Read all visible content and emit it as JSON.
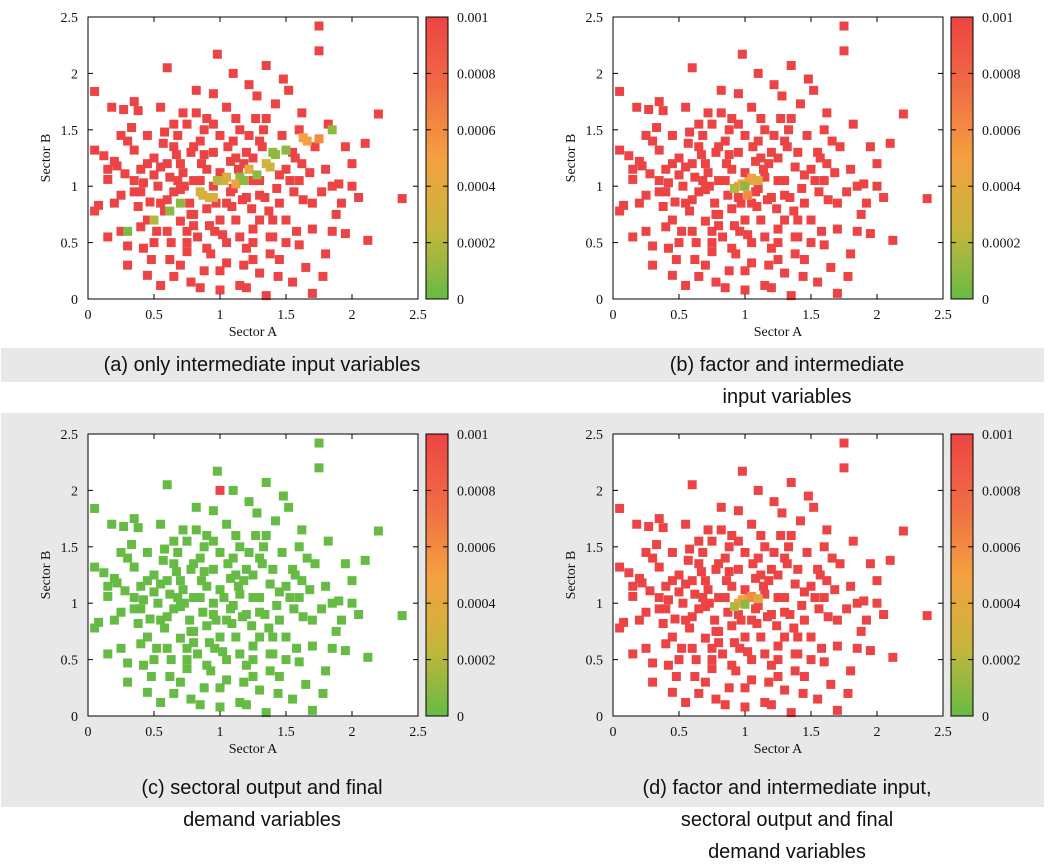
{
  "colorbar": {
    "ticks": [
      "0",
      "0.0002",
      "0.0004",
      "0.0006",
      "0.0008",
      "0.001"
    ],
    "min": 0,
    "max": 0.001,
    "colors": [
      "#66bb44",
      "#c9b53c",
      "#f4a040",
      "#f06b44",
      "#ec4444"
    ]
  },
  "panels": [
    {
      "caption_lines": [
        "(a) only intermediate input variables"
      ],
      "chart_data": {
        "type": "scatter",
        "title": "",
        "xlabel": "Sector A",
        "ylabel": "Sector B",
        "xlim": [
          0,
          2.5
        ],
        "ylim": [
          0,
          2.5
        ],
        "xticks": [
          "0",
          "0.5",
          "1",
          "1.5",
          "2",
          "2.5"
        ],
        "yticks": [
          "0",
          "0.5",
          "1",
          "1.5",
          "2",
          "2.5"
        ],
        "color_range": [
          0,
          0.001
        ],
        "highlights": [
          {
            "x": 0.85,
            "y": 0.95,
            "v": 0.0003
          },
          {
            "x": 0.92,
            "y": 0.9,
            "v": 0.00035
          },
          {
            "x": 0.98,
            "y": 1.05,
            "v": 0.0002
          },
          {
            "x": 1.05,
            "y": 1.08,
            "v": 0.0003
          },
          {
            "x": 1.12,
            "y": 1.02,
            "v": 0.0005
          },
          {
            "x": 1.18,
            "y": 1.05,
            "v": 0.0001
          },
          {
            "x": 1.22,
            "y": 1.15,
            "v": 0.0004
          },
          {
            "x": 1.28,
            "y": 1.1,
            "v": 0.0001
          },
          {
            "x": 1.35,
            "y": 1.2,
            "v": 0.0003
          },
          {
            "x": 1.42,
            "y": 1.28,
            "v": 0.0001
          },
          {
            "x": 1.5,
            "y": 1.32,
            "v": 0.0001
          },
          {
            "x": 1.63,
            "y": 1.43,
            "v": 0.0005
          },
          {
            "x": 1.75,
            "y": 1.42,
            "v": 0.0006
          },
          {
            "x": 1.85,
            "y": 1.5,
            "v": 0.0001
          },
          {
            "x": 0.7,
            "y": 0.85,
            "v": 0.0001
          },
          {
            "x": 0.3,
            "y": 0.6,
            "v": 5e-05
          },
          {
            "x": 0.62,
            "y": 0.78,
            "v": 0.0001
          },
          {
            "x": 0.5,
            "y": 0.7,
            "v": 0.0002
          }
        ]
      }
    },
    {
      "caption_lines": [
        "(b) factor and intermediate",
        "input variables"
      ],
      "chart_data": {
        "type": "scatter",
        "title": "",
        "xlabel": "Sector A",
        "ylabel": "Sector B",
        "xlim": [
          0,
          2.5
        ],
        "ylim": [
          0,
          2.5
        ],
        "xticks": [
          "0",
          "0.5",
          "1",
          "1.5",
          "2",
          "2.5"
        ],
        "yticks": [
          "0",
          "0.5",
          "1",
          "1.5",
          "2",
          "2.5"
        ],
        "color_range": [
          0,
          0.001
        ],
        "highlights": [
          {
            "x": 0.92,
            "y": 0.98,
            "v": 0.0002
          },
          {
            "x": 0.98,
            "y": 1.02,
            "v": 0.00045
          },
          {
            "x": 1.0,
            "y": 1.0,
            "v": 0.0001
          },
          {
            "x": 1.05,
            "y": 1.07,
            "v": 0.0005
          },
          {
            "x": 1.02,
            "y": 0.92,
            "v": 0.0006
          },
          {
            "x": 1.1,
            "y": 1.05,
            "v": 0.00035
          }
        ]
      }
    },
    {
      "caption_lines": [
        "(c) sectoral output and final",
        "demand variables"
      ],
      "chart_data": {
        "type": "scatter",
        "title": "",
        "xlabel": "Sector A",
        "ylabel": "Sector B",
        "xlim": [
          0,
          2.5
        ],
        "ylim": [
          0,
          2.5
        ],
        "xticks": [
          "0",
          "0.5",
          "1",
          "1.5",
          "2",
          "2.5"
        ],
        "yticks": [
          "0",
          "0.5",
          "1",
          "1.5",
          "2",
          "2.5"
        ],
        "color_range": [
          0,
          0.001
        ],
        "base_value": 0,
        "highlights": [
          {
            "x": 1.0,
            "y": 2.0,
            "v": 0.001
          }
        ]
      }
    },
    {
      "caption_lines": [
        "(d) factor and intermediate input,",
        "sectoral output and final",
        "demand variables"
      ],
      "chart_data": {
        "type": "scatter",
        "title": "",
        "xlabel": "Sector A",
        "ylabel": "Sector B",
        "xlim": [
          0,
          2.5
        ],
        "ylim": [
          0,
          2.5
        ],
        "xticks": [
          "0",
          "0.5",
          "1",
          "1.5",
          "2",
          "2.5"
        ],
        "yticks": [
          "0",
          "0.5",
          "1",
          "1.5",
          "2",
          "2.5"
        ],
        "color_range": [
          0,
          0.001
        ],
        "highlights": [
          {
            "x": 0.92,
            "y": 0.97,
            "v": 0.0002
          },
          {
            "x": 0.98,
            "y": 1.03,
            "v": 0.0005
          },
          {
            "x": 1.0,
            "y": 0.99,
            "v": 0.0001
          },
          {
            "x": 1.05,
            "y": 1.06,
            "v": 0.0006
          },
          {
            "x": 1.1,
            "y": 1.04,
            "v": 0.0004
          }
        ]
      }
    }
  ],
  "points": [
    [
      0.05,
      0.78
    ],
    [
      0.08,
      0.83
    ],
    [
      0.05,
      1.32
    ],
    [
      0.05,
      1.84
    ],
    [
      0.12,
      1.27
    ],
    [
      0.15,
      1.06
    ],
    [
      0.18,
      1.7
    ],
    [
      0.2,
      1.22
    ],
    [
      0.22,
      1.18
    ],
    [
      0.25,
      0.92
    ],
    [
      0.27,
      1.68
    ],
    [
      0.28,
      1.11
    ],
    [
      0.3,
      0.47
    ],
    [
      0.3,
      0.3
    ],
    [
      0.33,
      1.52
    ],
    [
      0.35,
      0.95
    ],
    [
      0.35,
      1.32
    ],
    [
      0.38,
      0.82
    ],
    [
      0.38,
      1.67
    ],
    [
      0.4,
      0.64
    ],
    [
      0.4,
      1.15
    ],
    [
      0.42,
      1.03
    ],
    [
      0.45,
      1.45
    ],
    [
      0.45,
      0.21
    ],
    [
      0.47,
      0.86
    ],
    [
      0.5,
      1.25
    ],
    [
      0.52,
      0.6
    ],
    [
      0.53,
      1.0
    ],
    [
      0.55,
      1.17
    ],
    [
      0.55,
      0.12
    ],
    [
      0.57,
      1.38
    ],
    [
      0.6,
      2.05
    ],
    [
      0.6,
      0.88
    ],
    [
      0.62,
      1.08
    ],
    [
      0.63,
      0.5
    ],
    [
      0.65,
      1.55
    ],
    [
      0.65,
      0.2
    ],
    [
      0.67,
      1.28
    ],
    [
      0.7,
      0.97
    ],
    [
      0.7,
      0.69
    ],
    [
      0.72,
      1.65
    ],
    [
      0.72,
      1.12
    ],
    [
      0.75,
      0.42
    ],
    [
      0.75,
      0.6
    ],
    [
      0.78,
      1.3
    ],
    [
      0.78,
      0.15
    ],
    [
      0.8,
      1.05
    ],
    [
      0.8,
      0.75
    ],
    [
      0.82,
      1.85
    ],
    [
      0.83,
      0.55
    ],
    [
      0.85,
      1.4
    ],
    [
      0.87,
      0.92
    ],
    [
      0.88,
      0.25
    ],
    [
      0.9,
      1.6
    ],
    [
      0.9,
      1.15
    ],
    [
      0.92,
      0.65
    ],
    [
      0.93,
      0.4
    ],
    [
      0.95,
      1.82
    ],
    [
      0.95,
      1.3
    ],
    [
      0.97,
      0.85
    ],
    [
      0.98,
      2.17
    ],
    [
      1.0,
      0.08
    ],
    [
      1.0,
      1.45
    ],
    [
      1.02,
      0.57
    ],
    [
      1.03,
      1.05
    ],
    [
      1.05,
      1.7
    ],
    [
      1.05,
      0.32
    ],
    [
      1.08,
      1.22
    ],
    [
      1.1,
      0.98
    ],
    [
      1.1,
      2.0
    ],
    [
      1.12,
      0.7
    ],
    [
      1.15,
      1.5
    ],
    [
      1.15,
      0.12
    ],
    [
      1.17,
      0.88
    ],
    [
      1.2,
      1.3
    ],
    [
      1.2,
      0.45
    ],
    [
      1.22,
      1.9
    ],
    [
      1.25,
      1.05
    ],
    [
      1.25,
      0.62
    ],
    [
      1.27,
      1.6
    ],
    [
      1.3,
      0.23
    ],
    [
      1.3,
      0.92
    ],
    [
      1.32,
      1.35
    ],
    [
      1.35,
      0.03
    ],
    [
      1.35,
      2.07
    ],
    [
      1.37,
      0.78
    ],
    [
      1.38,
      1.17
    ],
    [
      1.4,
      0.55
    ],
    [
      1.42,
      1.73
    ],
    [
      1.43,
      0.98
    ],
    [
      1.45,
      0.35
    ],
    [
      1.47,
      1.45
    ],
    [
      1.5,
      0.7
    ],
    [
      1.52,
      1.85
    ],
    [
      1.53,
      1.05
    ],
    [
      1.55,
      0.15
    ],
    [
      1.57,
      1.25
    ],
    [
      1.6,
      0.48
    ],
    [
      1.62,
      1.65
    ],
    [
      1.63,
      0.88
    ],
    [
      1.65,
      0.28
    ],
    [
      1.68,
      1.12
    ],
    [
      1.7,
      0.62
    ],
    [
      1.72,
      1.35
    ],
    [
      1.75,
      2.42
    ],
    [
      1.75,
      2.2
    ],
    [
      1.77,
      0.95
    ],
    [
      1.8,
      0.4
    ],
    [
      1.82,
      1.55
    ],
    [
      1.85,
      1.0
    ],
    [
      1.88,
      0.75
    ],
    [
      1.9,
      1.02
    ],
    [
      1.95,
      0.58
    ],
    [
      2.0,
      1.2
    ],
    [
      2.05,
      0.9
    ],
    [
      2.1,
      1.38
    ],
    [
      2.12,
      0.52
    ],
    [
      2.2,
      1.64
    ],
    [
      2.38,
      0.89
    ],
    [
      0.25,
      0.6
    ],
    [
      0.48,
      0.35
    ],
    [
      0.58,
      0.78
    ],
    [
      0.68,
      1.45
    ],
    [
      0.77,
      0.85
    ],
    [
      0.86,
      1.2
    ],
    [
      0.96,
      0.6
    ],
    [
      1.06,
      1.35
    ],
    [
      1.14,
      1.15
    ],
    [
      1.24,
      0.8
    ],
    [
      1.33,
      1.5
    ],
    [
      1.44,
      0.2
    ],
    [
      1.56,
      0.95
    ],
    [
      1.66,
      1.4
    ],
    [
      1.78,
      0.2
    ],
    [
      1.92,
      0.85
    ],
    [
      0.15,
      0.55
    ],
    [
      0.35,
      1.75
    ],
    [
      0.62,
      0.35
    ],
    [
      0.88,
      1.5
    ],
    [
      1.18,
      0.3
    ],
    [
      1.48,
      1.95
    ],
    [
      1.7,
      0.05
    ],
    [
      0.42,
      0.45
    ],
    [
      0.73,
      1.0
    ],
    [
      1.28,
      1.8
    ],
    [
      1.58,
      0.6
    ],
    [
      0.55,
      1.7
    ],
    [
      0.85,
      0.1
    ],
    [
      1.12,
      1.6
    ],
    [
      1.38,
      0.4
    ],
    [
      1.62,
      1.2
    ],
    [
      0.2,
      0.85
    ],
    [
      0.5,
      1.1
    ],
    [
      0.8,
      1.35
    ],
    [
      1.09,
      0.82
    ],
    [
      1.34,
      0.9
    ],
    [
      0.65,
      0.95
    ],
    [
      0.95,
      1.0
    ],
    [
      1.25,
      1.25
    ],
    [
      0.75,
      0.5
    ],
    [
      1.05,
      0.5
    ],
    [
      1.2,
      0.1
    ],
    [
      0.3,
      1.4
    ],
    [
      1.85,
      0.6
    ],
    [
      0.4,
      0.95
    ],
    [
      0.6,
      1.2
    ],
    [
      0.9,
      0.8
    ],
    [
      1.0,
      1.12
    ],
    [
      1.15,
      1.08
    ],
    [
      1.3,
      1.05
    ],
    [
      1.45,
      1.1
    ],
    [
      1.55,
      1.3
    ],
    [
      0.7,
      1.2
    ],
    [
      0.8,
      0.65
    ],
    [
      1.1,
      1.4
    ],
    [
      1.4,
      0.7
    ],
    [
      0.45,
      1.2
    ],
    [
      1.6,
      1.5
    ],
    [
      0.95,
      1.55
    ],
    [
      1.25,
      0.5
    ],
    [
      0.55,
      0.85
    ],
    [
      1.35,
      1.6
    ],
    [
      0.85,
      1.05
    ],
    [
      1.05,
      0.85
    ],
    [
      1.2,
      0.9
    ],
    [
      0.65,
      1.35
    ],
    [
      1.45,
      0.85
    ],
    [
      0.75,
      1.55
    ],
    [
      1.0,
      0.7
    ],
    [
      1.3,
      0.7
    ],
    [
      0.5,
      0.5
    ],
    [
      1.7,
      0.85
    ],
    [
      0.35,
      1.05
    ],
    [
      0.25,
      1.45
    ],
    [
      0.6,
      0.6
    ],
    [
      0.9,
      0.45
    ],
    [
      1.15,
      0.55
    ],
    [
      1.5,
      0.5
    ],
    [
      1.8,
      1.15
    ],
    [
      2.0,
      1.0
    ],
    [
      0.15,
      1.15
    ],
    [
      1.95,
      1.35
    ],
    [
      1.6,
      1.05
    ],
    [
      0.7,
      0.3
    ],
    [
      1.0,
      0.25
    ],
    [
      1.25,
      0.35
    ],
    [
      0.45,
      0.7
    ],
    [
      1.12,
      1.25
    ],
    [
      0.82,
      1.65
    ],
    [
      1.4,
      1.3
    ],
    [
      0.58,
      1.48
    ],
    [
      1.22,
      1.45
    ],
    [
      0.95,
      0.9
    ],
    [
      1.08,
      0.95
    ],
    [
      1.18,
      1.2
    ],
    [
      0.88,
      1.28
    ],
    [
      1.3,
      1.4
    ],
    [
      1.5,
      1.15
    ],
    [
      0.68,
      1.05
    ],
    [
      1.38,
      0.55
    ],
    [
      0.78,
      0.75
    ]
  ]
}
